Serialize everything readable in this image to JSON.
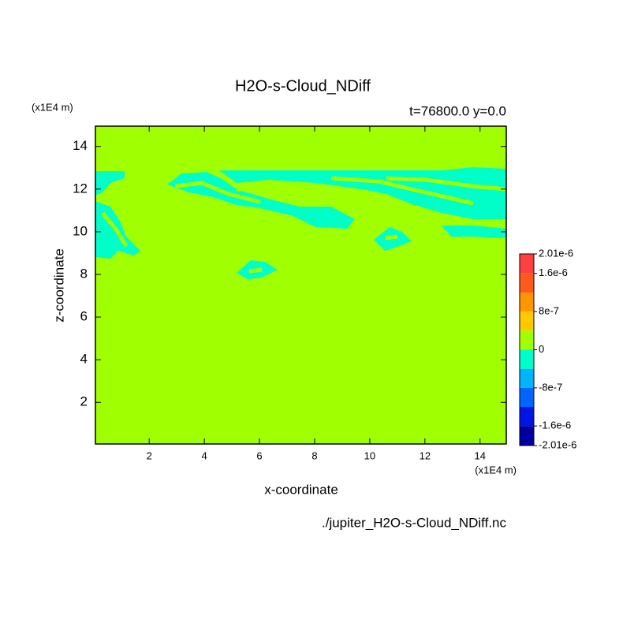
{
  "chart_data": {
    "type": "contour",
    "title": "H2O-s-Cloud_NDiff",
    "subtitle": "t=76800.0 y=0.0",
    "x_label": "x-coordinate",
    "y_label": "z-coordinate",
    "x_unit": "(x1E4 m)",
    "y_unit": "(x1E4 m)",
    "file_name": "./jupiter_H2O-s-Cloud_NDiff.nc",
    "xlim": [
      0.05,
      14.95
    ],
    "ylim": [
      0.05,
      14.95
    ],
    "xticks": [
      2,
      4,
      6,
      8,
      10,
      12,
      14
    ],
    "yticks": [
      2,
      4,
      6,
      8,
      10,
      12,
      14
    ],
    "background_color": "#a0ff00",
    "levels": [
      2.01e-06,
      1.6e-06,
      1.2e-06,
      8e-07,
      4e-07,
      0,
      -4e-07,
      -8e-07,
      -1.2e-06,
      -1.6e-06,
      -2.01e-06
    ],
    "level_colors": [
      "#ff4040",
      "#ff5a1e",
      "#ff9600",
      "#ffc800",
      "#a0ff00",
      "#00ffc8",
      "#00b4ff",
      "#0064ff",
      "#0014e6",
      "#0000a0"
    ],
    "colorbar_ticks": [
      {
        "value": 2.01e-06,
        "label": "2.01e-6"
      },
      {
        "value": 1.6e-06,
        "label": "1.6e-6"
      },
      {
        "value": 8e-07,
        "label": "8e-7"
      },
      {
        "value": 0,
        "label": "0"
      },
      {
        "value": -8e-07,
        "label": "-8e-7"
      },
      {
        "value": -1.6e-06,
        "label": "-1.6e-6"
      },
      {
        "value": -2.01e-06,
        "label": "-2.01e-6"
      }
    ]
  }
}
